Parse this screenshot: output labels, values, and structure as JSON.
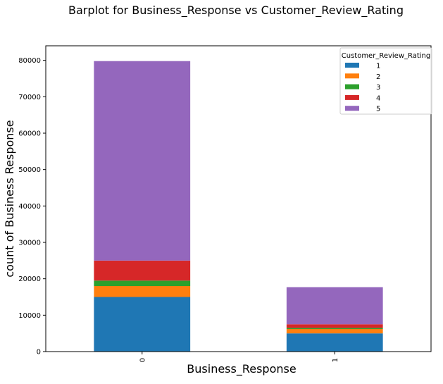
{
  "chart_data": {
    "type": "bar",
    "stacked": true,
    "title": "Barplot for Business_Response vs Customer_Review_Rating",
    "xlabel": "Business_Response",
    "ylabel": "count of Business Response",
    "categories": [
      "0",
      "1"
    ],
    "ylim": [
      0,
      84000
    ],
    "yticks": [
      0,
      10000,
      20000,
      30000,
      40000,
      50000,
      60000,
      70000,
      80000
    ],
    "ytick_labels": [
      "0",
      "10000",
      "20000",
      "30000",
      "40000",
      "50000",
      "60000",
      "70000",
      "80000"
    ],
    "grid": false,
    "legend": {
      "title": "Customer_Review_Rating",
      "placement": "top-right"
    },
    "series": [
      {
        "name": "1",
        "color": "#1f77b4",
        "values": [
          15000,
          5000
        ]
      },
      {
        "name": "2",
        "color": "#ff7f0e",
        "values": [
          3000,
          1200
        ]
      },
      {
        "name": "3",
        "color": "#2ca02c",
        "values": [
          1500,
          300
        ]
      },
      {
        "name": "4",
        "color": "#d62728",
        "values": [
          5500,
          1000
        ]
      },
      {
        "name": "5",
        "color": "#9467bd",
        "values": [
          54800,
          10200
        ]
      }
    ]
  }
}
